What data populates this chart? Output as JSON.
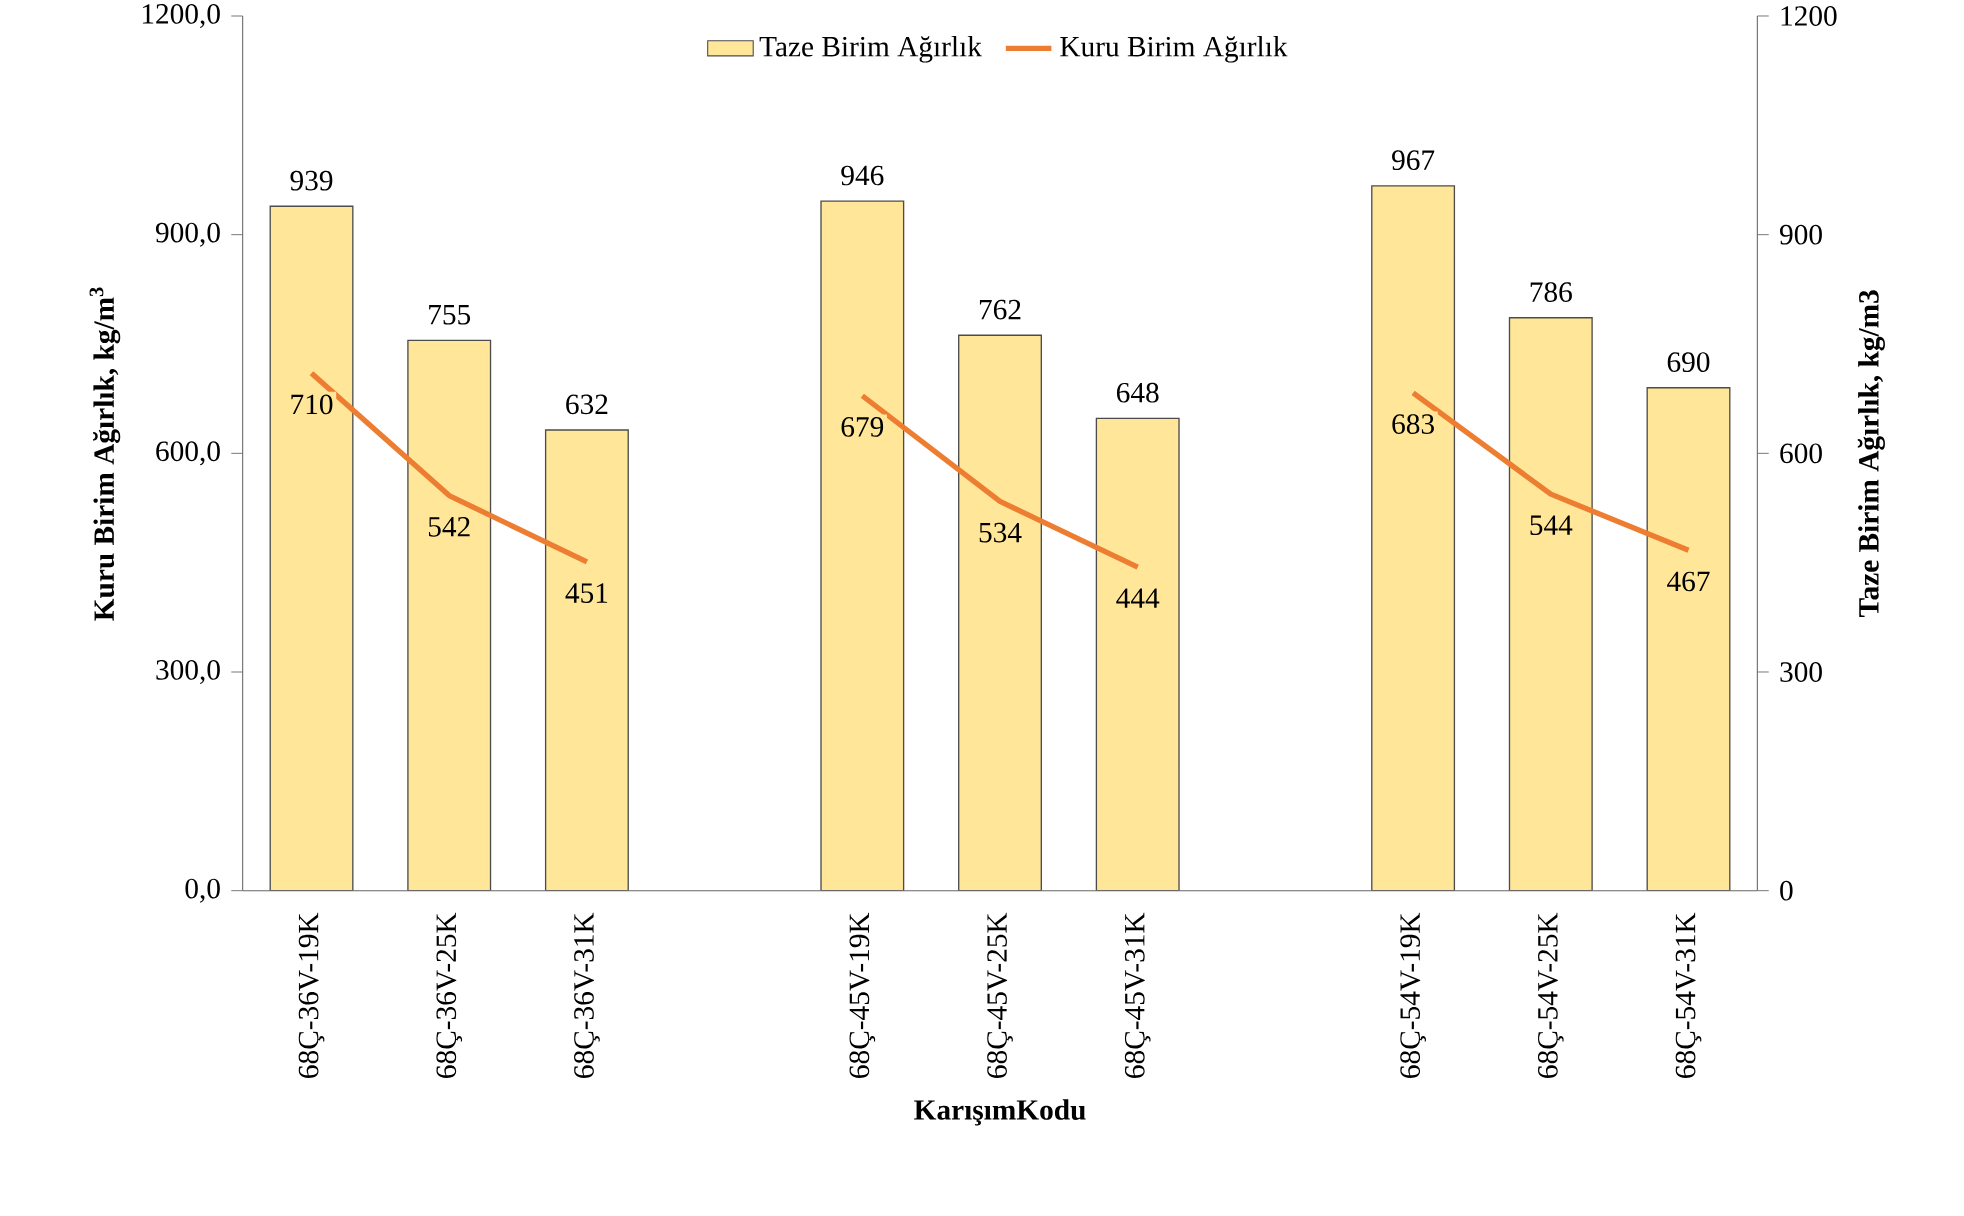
{
  "chart_data": {
    "type": "bar",
    "categories": [
      "68Ç-36V-19K",
      "68Ç-36V-25K",
      "68Ç-36V-31K",
      null,
      "68Ç-45V-19K",
      "68Ç-45V-25K",
      "68Ç-45V-31K",
      null,
      "68Ç-54V-19K",
      "68Ç-54V-25K",
      "68Ç-54V-31K"
    ],
    "series": [
      {
        "name": "Taze Birim Ağırlık",
        "axis": "y2",
        "color": "#ffe699",
        "values": [
          939,
          755,
          632,
          null,
          946,
          762,
          648,
          null,
          967,
          786,
          690
        ]
      },
      {
        "name": "Kuru Birim Ağırlık",
        "type": "line",
        "color": "#ed7d31",
        "values": [
          710,
          542,
          451,
          null,
          679,
          534,
          444,
          null,
          683,
          544,
          467
        ]
      }
    ],
    "xlabel": "KarışımKodu",
    "ylabel": "Kuru Birim Ağırlık, kg/m$^{3}$",
    "y2label": "Taze Birim Ağırlık, kg/m3",
    "ylim": [
      0,
      1200
    ],
    "yticks": [
      {
        "value": 0,
        "label": "0,0"
      },
      {
        "value": 300,
        "label": "300,0"
      },
      {
        "value": 600,
        "label": "600,0"
      },
      {
        "value": 900,
        "label": "900,0"
      },
      {
        "value": 1200,
        "label": "1200,0"
      }
    ],
    "y2lim": [
      0,
      1200
    ],
    "y2ticks": [
      0,
      300,
      600,
      900,
      1200
    ],
    "legend": "top",
    "data_labels": true
  }
}
